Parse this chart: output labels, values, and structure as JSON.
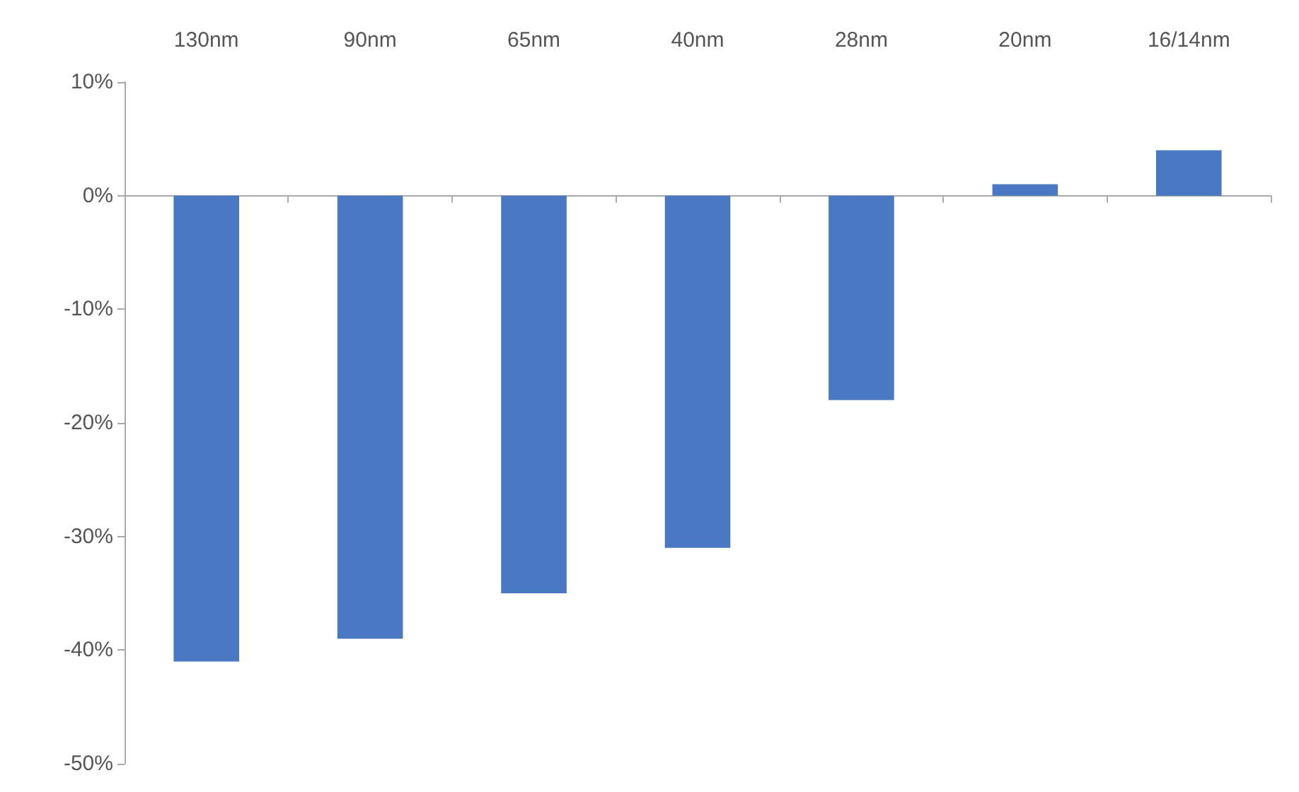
{
  "chart_data": {
    "type": "bar",
    "categories": [
      "130nm",
      "90nm",
      "65nm",
      "40nm",
      "28nm",
      "20nm",
      "16/14nm"
    ],
    "values": [
      -41,
      -39,
      -35,
      -31,
      -18,
      1,
      4
    ],
    "color": "#4a78c2",
    "ylim": [
      -50,
      10
    ],
    "yticks": [
      {
        "value": -50,
        "label": "-50%"
      },
      {
        "value": -40,
        "label": "-40%"
      },
      {
        "value": -30,
        "label": "-30%"
      },
      {
        "value": -20,
        "label": "-20%"
      },
      {
        "value": -10,
        "label": "-10%"
      },
      {
        "value": 0,
        "label": "0%"
      },
      {
        "value": 10,
        "label": "10%"
      }
    ],
    "data_labels": false
  }
}
